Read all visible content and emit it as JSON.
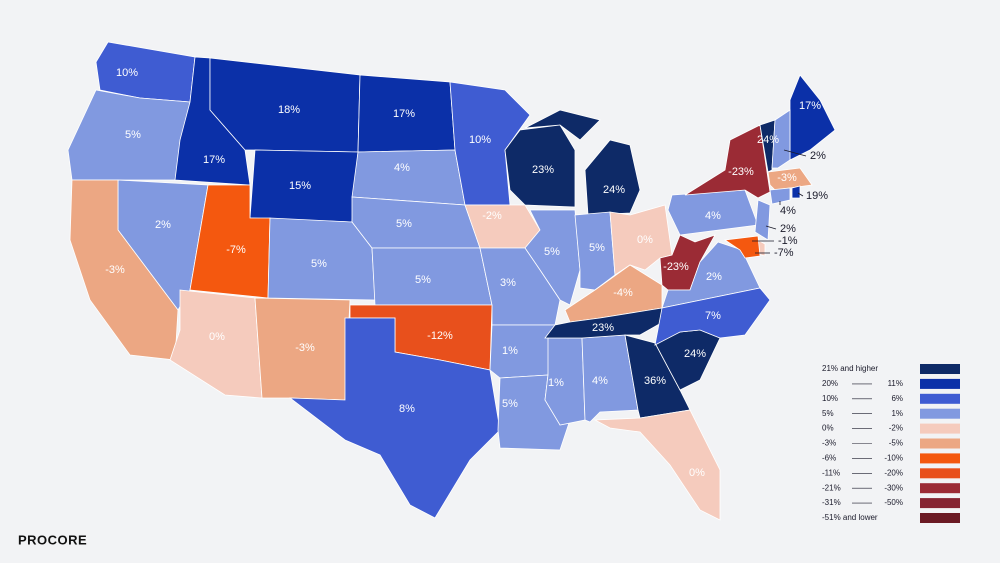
{
  "chart_data": {
    "type": "choropleth",
    "values": [
      10,
      5,
      17,
      18,
      15,
      17,
      4,
      10,
      23,
      24,
      2,
      -3,
      -7,
      5,
      5,
      5,
      -2,
      5,
      5,
      0,
      3,
      -4,
      -23,
      2,
      4,
      -23,
      0,
      -3,
      -12,
      8,
      1,
      5,
      1,
      4,
      23,
      36,
      24,
      7,
      0,
      17,
      24,
      -3,
      2,
      19,
      4,
      2,
      -1,
      -7
    ],
    "value_labels": [
      "10%",
      "5%",
      "17%",
      "18%",
      "15%",
      "17%",
      "4%",
      "10%",
      "23%",
      "24%",
      "2%",
      "-3%",
      "-7%",
      "5%",
      "5%",
      "5%",
      "-2%",
      "5%",
      "5%",
      "0%",
      "3%",
      "-4%",
      "-23%",
      "2%",
      "4%",
      "-23%",
      "0%",
      "-3%",
      "-12%",
      "8%",
      "1%",
      "5%",
      "1%",
      "4%",
      "23%",
      "36%",
      "24%",
      "7%",
      "0%",
      "17%",
      "24%",
      "-3%",
      "2%",
      "19%",
      "4%",
      "2%",
      "-1%",
      "-7%"
    ],
    "legend": [
      {
        "low": {
          "value": 21,
          "label": "21% and higher"
        },
        "color": "#0e2a67"
      },
      {
        "high": {
          "value": 20,
          "label": "20%"
        },
        "low": {
          "value": 11,
          "label": "11%"
        },
        "color": "#0b30a8"
      },
      {
        "high": {
          "value": 10,
          "label": "10%"
        },
        "low": {
          "value": 6,
          "label": "6%"
        },
        "color": "#3f5cd2"
      },
      {
        "high": {
          "value": 5,
          "label": "5%"
        },
        "low": {
          "value": 1,
          "label": "1%"
        },
        "color": "#8199e0"
      },
      {
        "high": {
          "value": 0,
          "label": "0%"
        },
        "low": {
          "value": -2,
          "label": "-2%"
        },
        "color": "#f5cbbd"
      },
      {
        "high": {
          "value": -3,
          "label": "-3%"
        },
        "low": {
          "value": -5,
          "label": "-5%"
        },
        "color": "#eca783"
      },
      {
        "high": {
          "value": -6,
          "label": "-6%"
        },
        "low": {
          "value": -10,
          "label": "-10%"
        },
        "color": "#f4580f"
      },
      {
        "high": {
          "value": -11,
          "label": "-11%"
        },
        "low": {
          "value": -20,
          "label": "-20%"
        },
        "color": "#e8501c"
      },
      {
        "high": {
          "value": -21,
          "label": "-21%"
        },
        "low": {
          "value": -30,
          "label": "-30%"
        },
        "color": "#9b2b35"
      },
      {
        "high": {
          "value": -31,
          "label": "-31%"
        },
        "low": {
          "value": -50,
          "label": "-50%"
        },
        "color": "#862431"
      },
      {
        "high": {
          "value": -51,
          "label": "-51% and lower"
        },
        "color": "#6b1a24"
      }
    ]
  },
  "logo": "PROCORE"
}
